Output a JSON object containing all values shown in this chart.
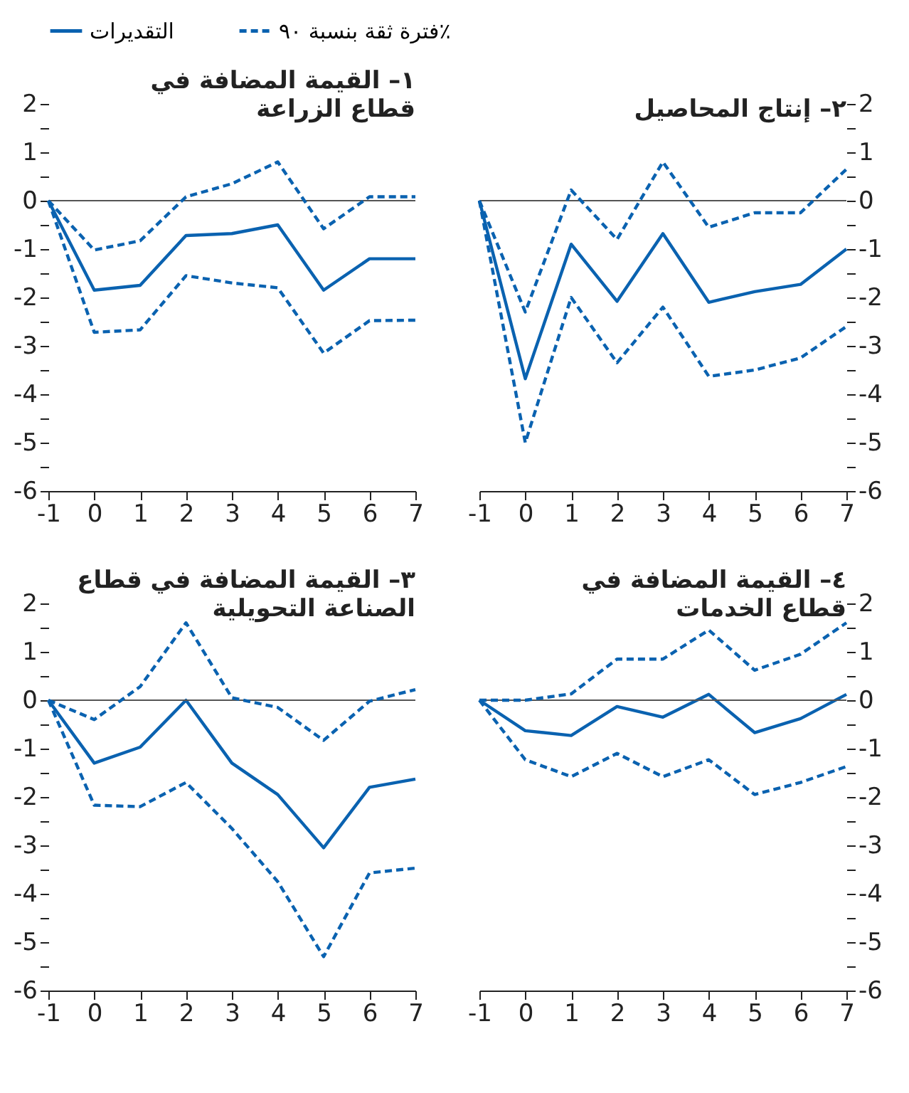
{
  "chart_data": [
    {
      "type": "line",
      "title": "١– القيمة المضافة في\nقطاع الزراعة",
      "x": [
        -1,
        0,
        1,
        2,
        3,
        4,
        5,
        6,
        7
      ],
      "xlim": [
        -1,
        7
      ],
      "xticks": [
        -1,
        0,
        1,
        2,
        3,
        4,
        5,
        6,
        7
      ],
      "ylim": [
        -6,
        2
      ],
      "yticks": [
        -6,
        {
          "value": -5.5,
          "label": null
        },
        -5,
        {
          "value": -4.5,
          "label": null
        },
        -4,
        {
          "value": -3.5,
          "label": null
        },
        -3,
        {
          "value": -2.5,
          "label": null
        },
        -2,
        {
          "value": -1.5,
          "label": null
        },
        -1,
        {
          "value": -0.5,
          "label": null
        },
        0,
        {
          "value": 0.5,
          "label": null
        },
        1,
        {
          "value": 1.5,
          "label": null
        },
        2
      ],
      "grid": false,
      "legend": "top",
      "ref_lines": [
        {
          "axis": "y",
          "value": 0,
          "color": "#555555"
        }
      ],
      "series": [
        {
          "name": "التقديرات",
          "color": "#0a62b0",
          "line_style": "solid",
          "values": [
            0,
            -1.85,
            -1.75,
            -0.72,
            -0.68,
            -0.5,
            -1.85,
            -1.2,
            -1.2
          ]
        },
        {
          "name": "فترة ثقة بنسبة ٩٠٪",
          "color": "#0a62b0",
          "line_style": "dashed",
          "values": [
            0,
            -1.02,
            -0.83,
            0.08,
            0.35,
            0.8,
            -0.58,
            0.08,
            0.08
          ]
        },
        {
          "color": "#0a62b0",
          "line_style": "dashed",
          "values": [
            0,
            -2.72,
            -2.67,
            -1.55,
            -1.7,
            -1.8,
            -3.15,
            -2.48,
            -2.47
          ]
        }
      ]
    },
    {
      "type": "line",
      "title": "٢– إنتاج المحاصيل",
      "x": [
        -1,
        0,
        1,
        2,
        3,
        4,
        5,
        6,
        7
      ],
      "xlim": [
        -1,
        7
      ],
      "xticks": [
        -1,
        0,
        1,
        2,
        3,
        4,
        5,
        6,
        7
      ],
      "ylim": [
        -6,
        2
      ],
      "yticks": [
        -6,
        {
          "value": -5.5,
          "label": null
        },
        -5,
        {
          "value": -4.5,
          "label": null
        },
        -4,
        {
          "value": -3.5,
          "label": null
        },
        -3,
        {
          "value": -2.5,
          "label": null
        },
        -2,
        {
          "value": -1.5,
          "label": null
        },
        -1,
        {
          "value": -0.5,
          "label": null
        },
        0,
        {
          "value": 0.5,
          "label": null
        },
        1,
        {
          "value": 1.5,
          "label": null
        },
        2
      ],
      "grid": false,
      "ref_lines": [
        {
          "axis": "y",
          "value": 0,
          "color": "#555555"
        }
      ],
      "series": [
        {
          "color": "#0a62b0",
          "line_style": "solid",
          "values": [
            0,
            -3.68,
            -0.9,
            -2.08,
            -0.68,
            -2.1,
            -1.88,
            -1.73,
            -1.0
          ]
        },
        {
          "color": "#0a62b0",
          "line_style": "dashed",
          "values": [
            0,
            -2.3,
            0.22,
            -0.8,
            0.8,
            -0.55,
            -0.25,
            -0.25,
            0.65
          ]
        },
        {
          "color": "#0a62b0",
          "line_style": "dashed",
          "values": [
            0,
            -5.0,
            -2.0,
            -3.35,
            -2.2,
            -3.63,
            -3.5,
            -3.25,
            -2.6
          ]
        }
      ]
    },
    {
      "type": "line",
      "title": "٣– القيمة المضافة في قطاع\nالصناعة التحويلية",
      "x": [
        -1,
        0,
        1,
        2,
        3,
        4,
        5,
        6,
        7
      ],
      "xlim": [
        -1,
        7
      ],
      "xticks": [
        -1,
        0,
        1,
        2,
        3,
        4,
        5,
        6,
        7
      ],
      "ylim": [
        -6,
        2
      ],
      "yticks": [
        -6,
        {
          "value": -5.5,
          "label": null
        },
        -5,
        {
          "value": -4.5,
          "label": null
        },
        -4,
        {
          "value": -3.5,
          "label": null
        },
        -3,
        {
          "value": -2.5,
          "label": null
        },
        -2,
        {
          "value": -1.5,
          "label": null
        },
        -1,
        {
          "value": -0.5,
          "label": null
        },
        0,
        {
          "value": 0.5,
          "label": null
        },
        1,
        {
          "value": 1.5,
          "label": null
        },
        2
      ],
      "grid": false,
      "ref_lines": [
        {
          "axis": "y",
          "value": 0,
          "color": "#555555"
        }
      ],
      "series": [
        {
          "color": "#0a62b0",
          "line_style": "solid",
          "values": [
            0,
            -1.3,
            -0.97,
            0,
            -1.3,
            -1.95,
            -3.05,
            -1.8,
            -1.63
          ]
        },
        {
          "color": "#0a62b0",
          "line_style": "dashed",
          "values": [
            0,
            -0.4,
            0.28,
            1.6,
            0.05,
            -0.15,
            -0.83,
            -0.02,
            0.22
          ]
        },
        {
          "color": "#0a62b0",
          "line_style": "dashed",
          "values": [
            0,
            -2.17,
            -2.2,
            -1.7,
            -2.65,
            -3.75,
            -5.3,
            -3.57,
            -3.47
          ]
        }
      ]
    },
    {
      "type": "line",
      "title": "٤– القيمة المضافة في\nقطاع الخدمات",
      "x": [
        -1,
        0,
        1,
        2,
        3,
        4,
        5,
        6,
        7
      ],
      "xlim": [
        -1,
        7
      ],
      "xticks": [
        -1,
        0,
        1,
        2,
        3,
        4,
        5,
        6,
        7
      ],
      "ylim": [
        -6,
        2
      ],
      "yticks": [
        -6,
        {
          "value": -5.5,
          "label": null
        },
        -5,
        {
          "value": -4.5,
          "label": null
        },
        -4,
        {
          "value": -3.5,
          "label": null
        },
        -3,
        {
          "value": -2.5,
          "label": null
        },
        -2,
        {
          "value": -1.5,
          "label": null
        },
        -1,
        {
          "value": -0.5,
          "label": null
        },
        0,
        {
          "value": 0.5,
          "label": null
        },
        1,
        {
          "value": 1.5,
          "label": null
        },
        2
      ],
      "grid": false,
      "ref_lines": [
        {
          "axis": "y",
          "value": 0,
          "color": "#555555"
        }
      ],
      "series": [
        {
          "color": "#0a62b0",
          "line_style": "solid",
          "values": [
            0,
            -0.63,
            -0.73,
            -0.13,
            -0.35,
            0.12,
            -0.67,
            -0.38,
            0.12
          ]
        },
        {
          "color": "#0a62b0",
          "line_style": "dashed",
          "values": [
            0,
            0,
            0.13,
            0.85,
            0.85,
            1.45,
            0.62,
            0.95,
            1.6
          ]
        },
        {
          "color": "#0a62b0",
          "line_style": "dashed",
          "values": [
            0,
            -1.23,
            -1.58,
            -1.1,
            -1.58,
            -1.23,
            -1.95,
            -1.7,
            -1.37
          ]
        }
      ]
    }
  ]
}
